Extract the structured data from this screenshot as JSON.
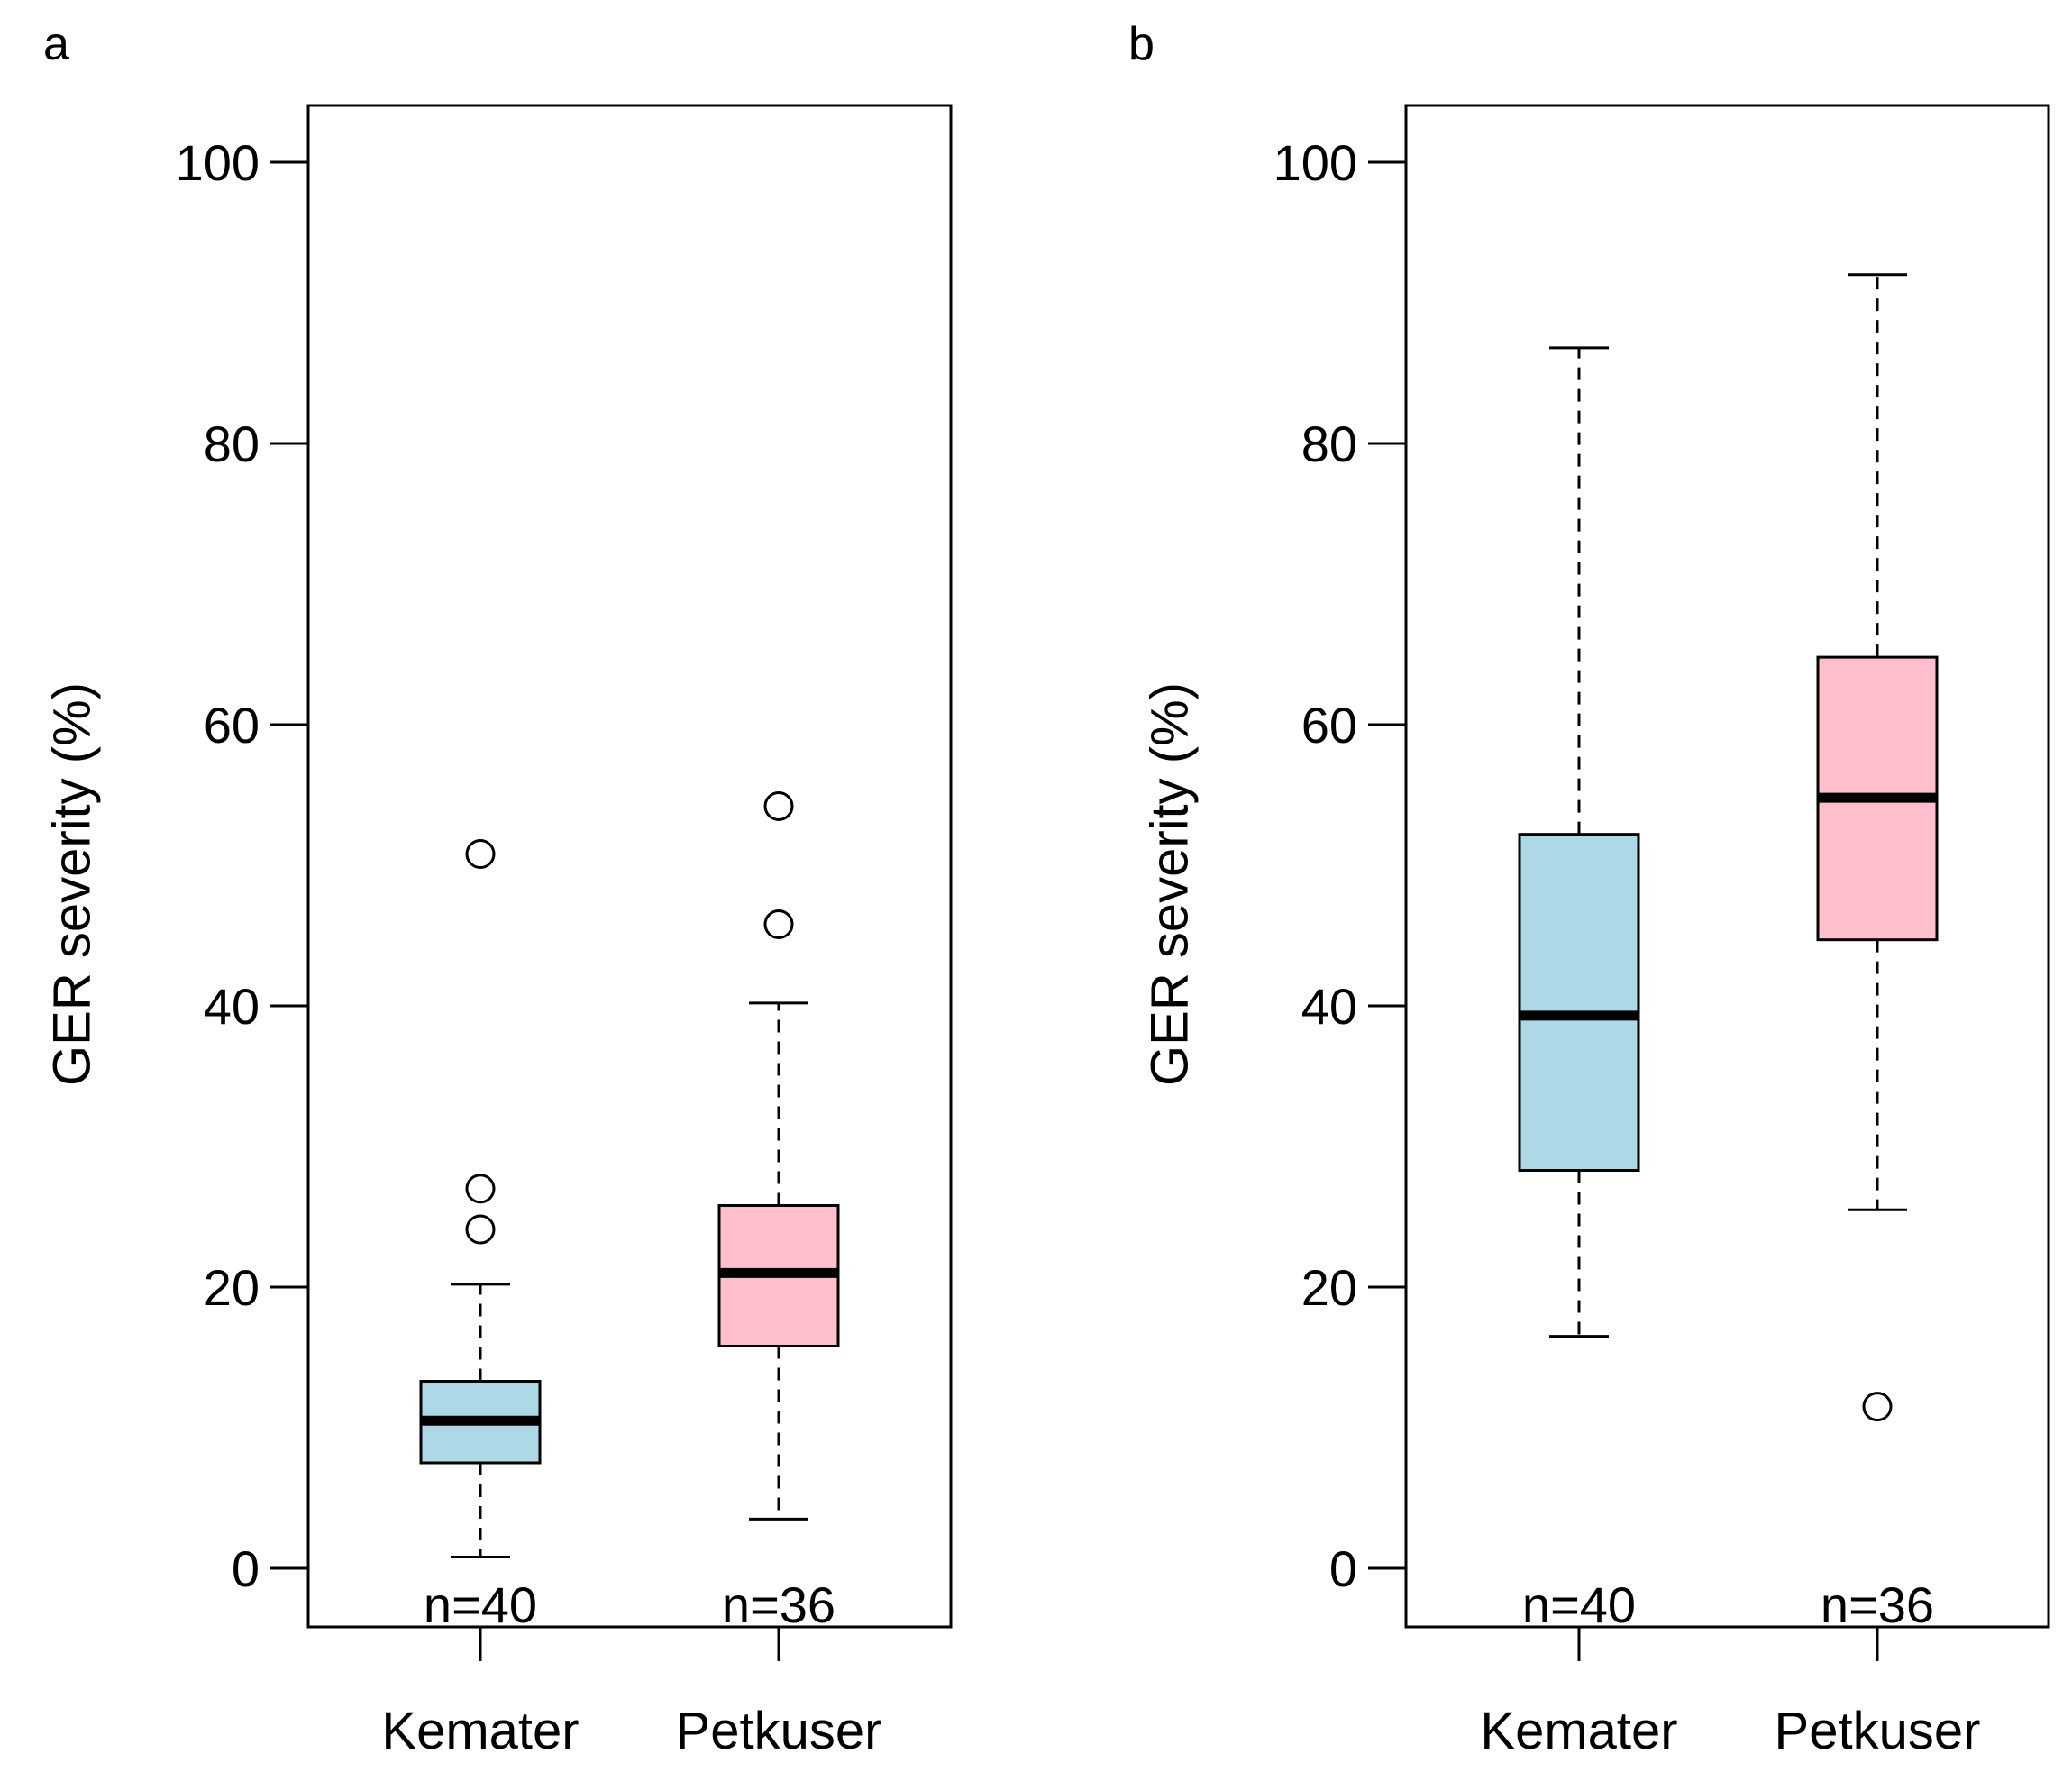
{
  "chart_data": [
    {
      "type": "box",
      "panel": "a",
      "ylabel": "GER severity (%)",
      "ylim": [
        0,
        100
      ],
      "yticks": [
        "0",
        "20",
        "40",
        "60",
        "80",
        "100"
      ],
      "categories": [
        "Kemater",
        "Petkuser"
      ],
      "boxes": [
        {
          "category": "Kemater",
          "whisker_low": 0.8,
          "q1": 7.5,
          "median": 10.5,
          "q3": 13.3,
          "whisker_high": 20.2,
          "outliers": [
            24.1,
            27.0,
            50.8
          ],
          "n_label": "n=40",
          "color": "#add8e6"
        },
        {
          "category": "Petkuser",
          "whisker_low": 3.5,
          "q1": 15.8,
          "median": 21.0,
          "q3": 25.8,
          "whisker_high": 40.2,
          "outliers": [
            45.8,
            54.2
          ],
          "n_label": "n=36",
          "color": "#ffc0cb"
        }
      ]
    },
    {
      "type": "box",
      "panel": "b",
      "ylabel": "GER severity (%)",
      "ylim": [
        0,
        100
      ],
      "yticks": [
        "0",
        "20",
        "40",
        "60",
        "80",
        "100"
      ],
      "categories": [
        "Kemater",
        "Petkuser"
      ],
      "boxes": [
        {
          "category": "Kemater",
          "whisker_low": 16.5,
          "q1": 28.3,
          "median": 39.3,
          "q3": 52.2,
          "whisker_high": 86.8,
          "outliers": [],
          "n_label": "n=40",
          "color": "#add8e6"
        },
        {
          "category": "Petkuser",
          "whisker_low": 25.5,
          "q1": 44.7,
          "median": 54.8,
          "q3": 64.8,
          "whisker_high": 92.0,
          "outliers": [
            11.5
          ],
          "n_label": "n=36",
          "color": "#ffc0cb"
        }
      ]
    }
  ]
}
